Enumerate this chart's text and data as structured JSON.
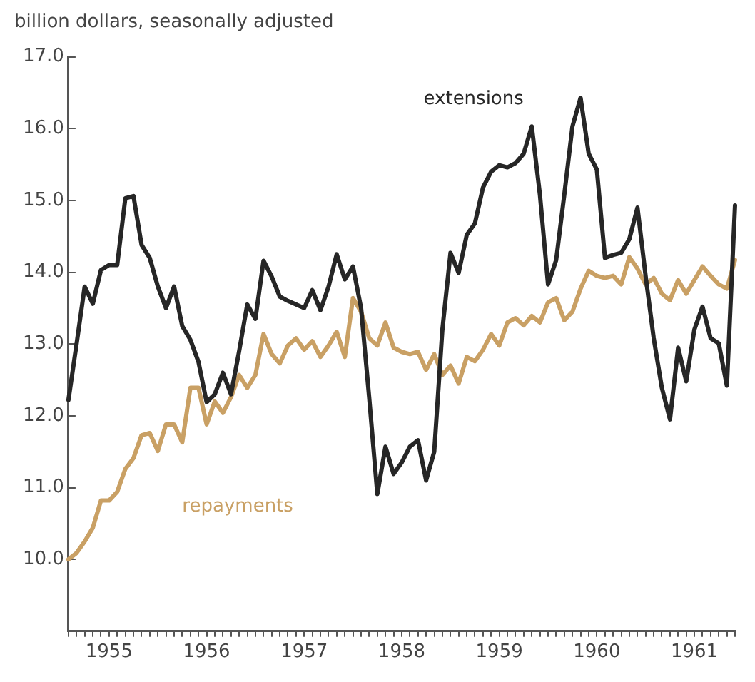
{
  "chart_data": {
    "type": "line",
    "ylabel": "billion dollars, seasonally adjusted",
    "categories": [
      null,
      null,
      null,
      null,
      null,
      "1955",
      null,
      null,
      null,
      null,
      null,
      null,
      null,
      null,
      null,
      null,
      null,
      "1956",
      null,
      null,
      null,
      null,
      null,
      null,
      null,
      null,
      null,
      null,
      null,
      "1957",
      null,
      null,
      null,
      null,
      null,
      null,
      null,
      null,
      null,
      null,
      null,
      "1958",
      null,
      null,
      null,
      null,
      null,
      null,
      null,
      null,
      null,
      null,
      null,
      "1959",
      null,
      null,
      null,
      null,
      null,
      null,
      null,
      null,
      null,
      null,
      null,
      "1960",
      null,
      null,
      null,
      null,
      null,
      null,
      null,
      null,
      null,
      null,
      null,
      "1961",
      null,
      null,
      null,
      null,
      null
    ],
    "series": [
      {
        "name": "extensions",
        "color": "#262626",
        "values": [
          12.22,
          13.0,
          13.8,
          13.56,
          14.03,
          14.1,
          14.1,
          15.03,
          15.06,
          14.38,
          14.2,
          13.8,
          13.5,
          13.8,
          13.25,
          13.06,
          12.75,
          12.19,
          12.3,
          12.6,
          12.3,
          12.9,
          13.55,
          13.35,
          14.16,
          13.94,
          13.66,
          13.6,
          13.55,
          13.5,
          13.75,
          13.47,
          13.8,
          14.25,
          13.9,
          14.08,
          13.5,
          12.25,
          10.91,
          11.57,
          11.19,
          11.35,
          11.57,
          11.66,
          11.1,
          11.5,
          13.2,
          14.27,
          13.99,
          14.52,
          14.68,
          15.18,
          15.4,
          15.49,
          15.46,
          15.52,
          15.65,
          16.03,
          15.08,
          13.83,
          14.17,
          15.08,
          16.03,
          16.43,
          15.65,
          15.43,
          14.2,
          14.24,
          14.27,
          14.46,
          14.9,
          13.95,
          13.08,
          12.39,
          11.95,
          12.95,
          12.48,
          13.2,
          13.52,
          13.08,
          13.01,
          12.42,
          14.93
        ]
      },
      {
        "name": "repayments",
        "color": "#c9a064",
        "values": [
          10.0,
          10.09,
          10.25,
          10.44,
          10.82,
          10.82,
          10.94,
          11.26,
          11.41,
          11.73,
          11.76,
          11.51,
          11.88,
          11.88,
          11.63,
          12.39,
          12.39,
          11.88,
          12.2,
          12.04,
          12.26,
          12.57,
          12.39,
          12.57,
          13.14,
          12.86,
          12.73,
          12.98,
          13.08,
          12.92,
          13.04,
          12.82,
          12.98,
          13.17,
          12.82,
          13.64,
          13.45,
          13.08,
          12.98,
          13.3,
          12.95,
          12.89,
          12.86,
          12.89,
          12.64,
          12.86,
          12.57,
          12.7,
          12.45,
          12.82,
          12.76,
          12.92,
          13.14,
          12.98,
          13.3,
          13.36,
          13.26,
          13.39,
          13.3,
          13.58,
          13.64,
          13.33,
          13.45,
          13.77,
          14.02,
          13.95,
          13.92,
          13.95,
          13.83,
          14.21,
          14.05,
          13.83,
          13.92,
          13.7,
          13.61,
          13.89,
          13.7,
          13.89,
          14.08,
          13.95,
          13.83,
          13.77,
          14.17
        ]
      }
    ],
    "ylim": [
      9,
      17
    ],
    "yticks": [
      {
        "value": 10,
        "label": "10.0"
      },
      {
        "value": 11,
        "label": "11.0"
      },
      {
        "value": 12,
        "label": "12.0"
      },
      {
        "value": 13,
        "label": "13.0"
      },
      {
        "value": 14,
        "label": "14.0"
      },
      {
        "value": 15,
        "label": "15.0"
      },
      {
        "value": 16,
        "label": "16.0"
      },
      {
        "value": 17,
        "label": "17.0"
      }
    ],
    "grid": false,
    "legend": false,
    "marker": "none",
    "line_style": "solid"
  }
}
